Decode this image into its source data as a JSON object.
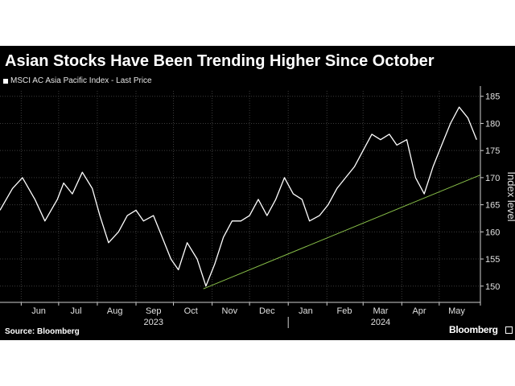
{
  "colors": {
    "background": "#000000",
    "price_line": "#ffffff",
    "trend_line": "#8bc34a",
    "grid": "#3c3c3c",
    "axis_text": "#e0e0e0"
  },
  "footer": {
    "source": "Source: Bloomberg",
    "brand": "Bloomberg",
    "brand_icon": "bloomberg-box-icon"
  },
  "chart_data": {
    "type": "line",
    "title": "Asian Stocks Have Been Trending Higher Since October",
    "series_name": "MSCI AC Asia Pacific Index - Last Price",
    "ylabel": "Index level",
    "ylim": [
      147,
      186
    ],
    "yticks": [
      150,
      155,
      160,
      165,
      170,
      175,
      180,
      185
    ],
    "grid": true,
    "legend_position": "top-left",
    "xlim": [
      "2023-05-15",
      "2024-06-03"
    ],
    "months": [
      {
        "label": "Jun",
        "mid": "2023-06-15"
      },
      {
        "label": "Jul",
        "mid": "2023-07-15"
      },
      {
        "label": "Aug",
        "mid": "2023-08-15"
      },
      {
        "label": "Sep",
        "mid": "2023-09-15"
      },
      {
        "label": "Oct",
        "mid": "2023-10-15"
      },
      {
        "label": "Nov",
        "mid": "2023-11-15"
      },
      {
        "label": "Dec",
        "mid": "2023-12-15"
      },
      {
        "label": "Jan",
        "mid": "2024-01-15"
      },
      {
        "label": "Feb",
        "mid": "2024-02-15"
      },
      {
        "label": "Mar",
        "mid": "2024-03-15"
      },
      {
        "label": "Apr",
        "mid": "2024-04-15"
      },
      {
        "label": "May",
        "mid": "2024-05-15"
      }
    ],
    "month_boundaries": [
      "2023-06-01",
      "2023-07-01",
      "2023-08-01",
      "2023-09-01",
      "2023-10-01",
      "2023-11-01",
      "2023-12-01",
      "2024-01-01",
      "2024-02-01",
      "2024-03-01",
      "2024-04-01",
      "2024-05-01"
    ],
    "years": [
      {
        "label": "2023",
        "mid": "2023-09-15"
      },
      {
        "label": "2024",
        "mid": "2024-03-15"
      }
    ],
    "year_boundary": "2024-01-01",
    "series": [
      {
        "name": "MSCI AC Asia Pacific Index - Last Price",
        "x": [
          "2023-05-15",
          "2023-05-25",
          "2023-06-02",
          "2023-06-12",
          "2023-06-20",
          "2023-06-30",
          "2023-07-05",
          "2023-07-12",
          "2023-07-20",
          "2023-07-28",
          "2023-08-03",
          "2023-08-10",
          "2023-08-18",
          "2023-08-25",
          "2023-09-01",
          "2023-09-07",
          "2023-09-15",
          "2023-09-22",
          "2023-09-29",
          "2023-10-05",
          "2023-10-12",
          "2023-10-20",
          "2023-10-27",
          "2023-11-03",
          "2023-11-10",
          "2023-11-17",
          "2023-11-24",
          "2023-12-01",
          "2023-12-08",
          "2023-12-15",
          "2023-12-22",
          "2023-12-29",
          "2024-01-05",
          "2024-01-12",
          "2024-01-18",
          "2024-01-26",
          "2024-02-02",
          "2024-02-09",
          "2024-02-16",
          "2024-02-23",
          "2024-03-01",
          "2024-03-08",
          "2024-03-15",
          "2024-03-22",
          "2024-03-28",
          "2024-04-05",
          "2024-04-12",
          "2024-04-19",
          "2024-04-26",
          "2024-05-03",
          "2024-05-10",
          "2024-05-17",
          "2024-05-24",
          "2024-05-31"
        ],
        "y": [
          164,
          168,
          170,
          166,
          162,
          166,
          169,
          167,
          171,
          168,
          163,
          158,
          160,
          163,
          164,
          162,
          163,
          159,
          155,
          153,
          158,
          155,
          150,
          154,
          159,
          162,
          162,
          163,
          166,
          163,
          166,
          170,
          167,
          166,
          162,
          163,
          165,
          168,
          170,
          172,
          175,
          178,
          177,
          178,
          176,
          177,
          170,
          167,
          172,
          176,
          180,
          183,
          181,
          177
        ]
      }
    ],
    "trendline": {
      "x": [
        "2023-10-25",
        "2024-06-03"
      ],
      "y": [
        149.5,
        170.5
      ]
    }
  }
}
